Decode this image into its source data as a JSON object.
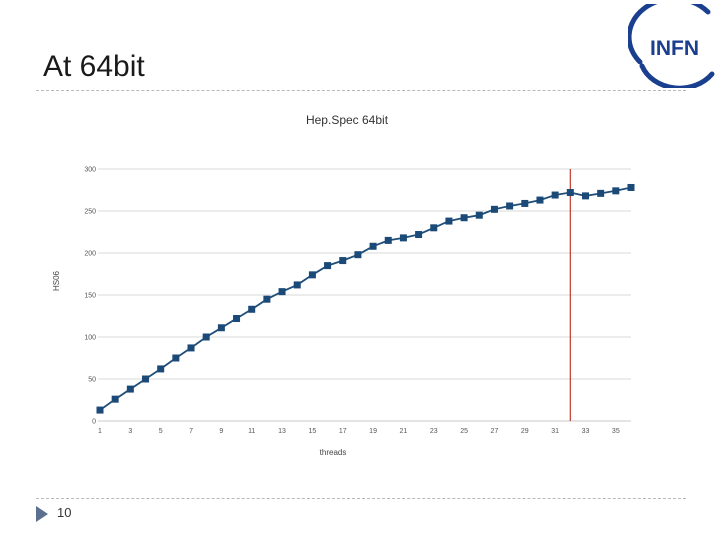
{
  "slide": {
    "title": "At 64bit",
    "page_number": "10",
    "logo_text": "INFN"
  },
  "colors": {
    "series": "#1f4e79",
    "marker": "#1b4a78",
    "reference_line": "#c0392b",
    "grid": "#d9d9d9"
  },
  "chart_data": {
    "type": "line",
    "title": "Hep.Spec 64bit",
    "xlabel": "threads",
    "ylabel": "HS06",
    "xlim": [
      0,
      36
    ],
    "ylim": [
      0,
      300
    ],
    "x_ticks": [
      "1",
      "3",
      "5",
      "7",
      "9",
      "11",
      "13",
      "15",
      "17",
      "19",
      "21",
      "23",
      "25",
      "27",
      "29",
      "31",
      "33",
      "35"
    ],
    "y_ticks": [
      "0",
      "50",
      "100",
      "150",
      "200",
      "250",
      "300"
    ],
    "grid": "horizontal",
    "reference_line_x": 32,
    "series": [
      {
        "x": [
          1,
          2,
          3,
          4,
          5,
          6,
          7,
          8,
          9,
          10,
          11,
          12,
          13,
          14,
          15,
          16,
          17,
          18,
          19,
          20,
          21,
          22,
          23,
          24,
          25,
          26,
          27,
          28,
          29,
          30,
          31,
          32,
          33,
          34,
          35,
          36
        ],
        "values": [
          13,
          26,
          38,
          50,
          62,
          75,
          87,
          100,
          111,
          122,
          133,
          145,
          154,
          162,
          174,
          185,
          191,
          198,
          208,
          215,
          218,
          222,
          230,
          238,
          242,
          245,
          252,
          256,
          259,
          263,
          269,
          272,
          268,
          271,
          274,
          278
        ]
      }
    ]
  }
}
